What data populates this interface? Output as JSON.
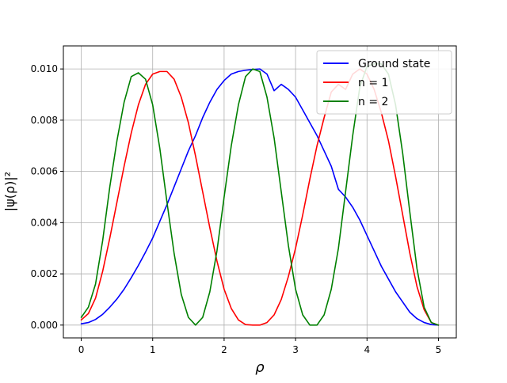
{
  "chart_data": {
    "type": "line",
    "title": "",
    "xlabel": "ρ",
    "ylabel": "|ψ(ρ)|²",
    "xlim": [
      -0.25,
      5.25
    ],
    "ylim": [
      -0.0005,
      0.0109
    ],
    "xticks": [
      0,
      1,
      2,
      3,
      4,
      5
    ],
    "xtick_labels": [
      "0",
      "1",
      "2",
      "3",
      "4",
      "5"
    ],
    "yticks": [
      0.0,
      0.002,
      0.004,
      0.006,
      0.008,
      0.01
    ],
    "ytick_labels": [
      "0.000",
      "0.002",
      "0.004",
      "0.006",
      "0.008",
      "0.010"
    ],
    "grid": true,
    "legend_position": "top-right",
    "series": [
      {
        "name": "Ground state",
        "color": "#0000ff",
        "x": [
          0,
          0.1,
          0.2,
          0.3,
          0.4,
          0.5,
          0.6,
          0.7,
          0.8,
          0.9,
          1.0,
          1.1,
          1.2,
          1.3,
          1.4,
          1.5,
          1.6,
          1.7,
          1.8,
          1.9,
          2.0,
          2.1,
          2.2,
          2.3,
          2.4,
          2.5,
          2.6,
          2.7,
          2.8,
          2.9,
          3.0,
          3.1,
          3.2,
          3.3,
          3.4,
          3.5,
          3.6,
          3.7,
          3.8,
          3.9,
          4.0,
          4.1,
          4.2,
          4.3,
          4.4,
          4.5,
          4.6,
          4.7,
          4.8,
          4.9,
          5.0
        ],
        "y": [
          5e-05,
          0.0001,
          0.00022,
          0.00042,
          0.0007,
          0.00102,
          0.0014,
          0.00185,
          0.00233,
          0.00285,
          0.0034,
          0.00405,
          0.0047,
          0.0054,
          0.0061,
          0.0068,
          0.0074,
          0.0081,
          0.0087,
          0.0092,
          0.00955,
          0.0098,
          0.0099,
          0.00995,
          0.00998,
          0.01,
          0.0098,
          0.00915,
          0.0094,
          0.0092,
          0.0089,
          0.0084,
          0.0079,
          0.0074,
          0.0068,
          0.0062,
          0.0053,
          0.005,
          0.0046,
          0.0041,
          0.0035,
          0.0029,
          0.0023,
          0.0018,
          0.0013,
          0.0009,
          0.0005,
          0.00025,
          0.0001,
          2e-05,
          0.0
        ]
      },
      {
        "name": "n = 1",
        "color": "#ff0000",
        "x": [
          0,
          0.1,
          0.2,
          0.3,
          0.4,
          0.5,
          0.6,
          0.7,
          0.8,
          0.9,
          1.0,
          1.1,
          1.2,
          1.3,
          1.4,
          1.5,
          1.6,
          1.7,
          1.8,
          1.9,
          2.0,
          2.1,
          2.2,
          2.3,
          2.4,
          2.5,
          2.6,
          2.7,
          2.8,
          2.9,
          3.0,
          3.1,
          3.2,
          3.3,
          3.4,
          3.5,
          3.6,
          3.7,
          3.8,
          3.9,
          4.0,
          4.1,
          4.2,
          4.3,
          4.4,
          4.5,
          4.6,
          4.7,
          4.8,
          4.9,
          5.0
        ],
        "y": [
          0.0002,
          0.00045,
          0.00105,
          0.0021,
          0.0034,
          0.0048,
          0.0062,
          0.0075,
          0.0086,
          0.0094,
          0.0098,
          0.0099,
          0.0099,
          0.0096,
          0.0089,
          0.0079,
          0.0066,
          0.0052,
          0.0038,
          0.0025,
          0.0014,
          0.00065,
          0.0002,
          2e-05,
          0.0,
          0.0,
          0.0001,
          0.0004,
          0.001,
          0.0019,
          0.003,
          0.0043,
          0.0057,
          0.007,
          0.0081,
          0.0091,
          0.0094,
          0.0092,
          0.0098,
          0.01,
          0.0098,
          0.0092,
          0.0083,
          0.0072,
          0.0058,
          0.0043,
          0.0028,
          0.0015,
          0.0006,
          0.0001,
          0.0
        ]
      },
      {
        "name": "n = 2",
        "color": "#008000",
        "x": [
          0,
          0.1,
          0.2,
          0.3,
          0.4,
          0.5,
          0.6,
          0.7,
          0.8,
          0.9,
          1.0,
          1.1,
          1.2,
          1.3,
          1.4,
          1.5,
          1.6,
          1.7,
          1.8,
          1.9,
          2.0,
          2.1,
          2.2,
          2.3,
          2.4,
          2.5,
          2.6,
          2.7,
          2.8,
          2.9,
          3.0,
          3.1,
          3.2,
          3.3,
          3.4,
          3.5,
          3.6,
          3.7,
          3.8,
          3.9,
          4.0,
          4.1,
          4.2,
          4.3,
          4.4,
          4.5,
          4.6,
          4.7,
          4.8,
          4.9,
          5.0
        ],
        "y": [
          0.0003,
          0.0007,
          0.0016,
          0.0033,
          0.0054,
          0.0072,
          0.0087,
          0.0097,
          0.00985,
          0.0096,
          0.0086,
          0.0069,
          0.0048,
          0.0028,
          0.0012,
          0.0003,
          0.0,
          0.0003,
          0.0013,
          0.0029,
          0.005,
          0.007,
          0.0086,
          0.0097,
          0.01,
          0.0099,
          0.0089,
          0.0073,
          0.0052,
          0.0031,
          0.0014,
          0.0004,
          0.0,
          0.0,
          0.0004,
          0.0014,
          0.003,
          0.0052,
          0.0074,
          0.0093,
          0.0101,
          0.0102,
          0.0102,
          0.0098,
          0.0086,
          0.0067,
          0.0044,
          0.0022,
          0.0007,
          0.0001,
          0.0
        ]
      }
    ]
  }
}
